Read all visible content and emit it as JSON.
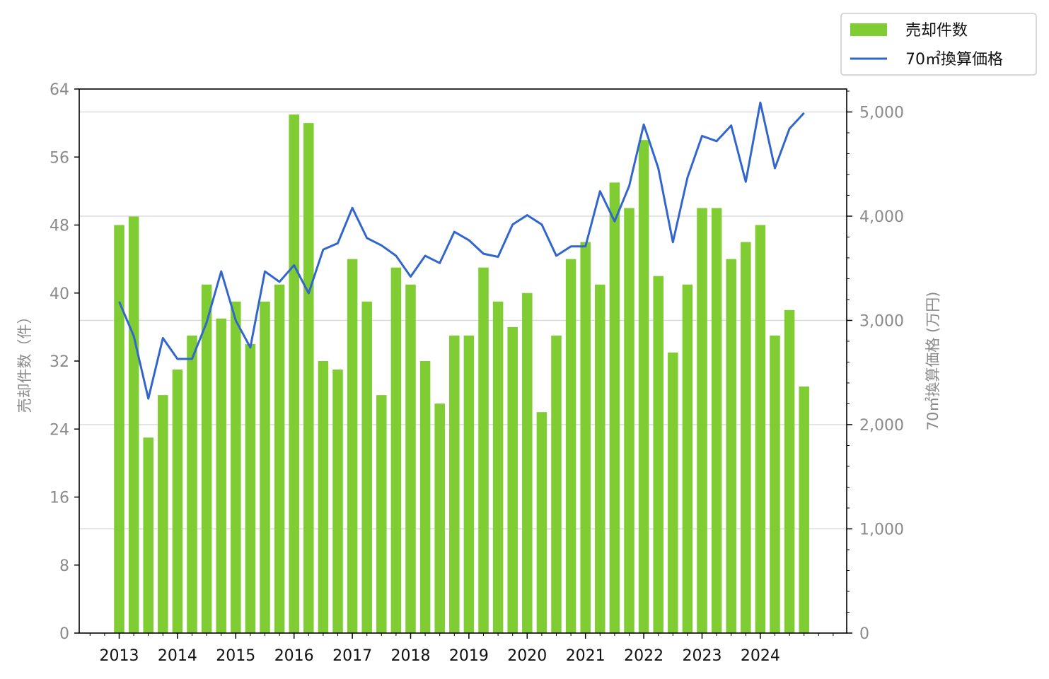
{
  "chart_data": {
    "type": "bar",
    "x_tick_labels": [
      "2013",
      "2014",
      "2015",
      "2016",
      "2017",
      "2018",
      "2019",
      "2020",
      "2021",
      "2022",
      "2023",
      "2024"
    ],
    "x": [
      "2013Q1",
      "2013Q2",
      "2013Q3",
      "2013Q4",
      "2014Q1",
      "2014Q2",
      "2014Q3",
      "2014Q4",
      "2015Q1",
      "2015Q2",
      "2015Q3",
      "2015Q4",
      "2016Q1",
      "2016Q2",
      "2016Q3",
      "2016Q4",
      "2017Q1",
      "2017Q2",
      "2017Q3",
      "2017Q4",
      "2018Q1",
      "2018Q2",
      "2018Q3",
      "2018Q4",
      "2019Q1",
      "2019Q2",
      "2019Q3",
      "2019Q4",
      "2020Q1",
      "2020Q2",
      "2020Q3",
      "2020Q4",
      "2021Q1",
      "2021Q2",
      "2021Q3",
      "2021Q4",
      "2022Q1",
      "2022Q2",
      "2022Q3",
      "2022Q4",
      "2023Q1",
      "2023Q2",
      "2023Q3",
      "2023Q4",
      "2024Q1",
      "2024Q2",
      "2024Q3",
      "2024Q4"
    ],
    "series": [
      {
        "name": "売却件数",
        "type": "bar",
        "axis": "left",
        "color": "#80cc33",
        "values": [
          48,
          49,
          23,
          28,
          31,
          35,
          41,
          37,
          39,
          34,
          39,
          41,
          61,
          60,
          32,
          31,
          44,
          39,
          28,
          43,
          41,
          32,
          27,
          35,
          35,
          43,
          39,
          36,
          40,
          26,
          35,
          44,
          46,
          41,
          53,
          50,
          58,
          42,
          33,
          41,
          50,
          50,
          44,
          46,
          48,
          35,
          38,
          29
        ]
      },
      {
        "name": "70㎡換算価格",
        "type": "line",
        "axis": "right",
        "color": "#3366cc",
        "values": [
          3180,
          2850,
          2250,
          2830,
          2630,
          2630,
          2980,
          3470,
          3000,
          2740,
          3470,
          3370,
          3530,
          3260,
          3680,
          3740,
          4080,
          3790,
          3720,
          3620,
          3420,
          3620,
          3550,
          3850,
          3770,
          3640,
          3610,
          3920,
          4010,
          3920,
          3620,
          3710,
          3710,
          4240,
          3950,
          4290,
          4880,
          4460,
          3750,
          4370,
          4770,
          4720,
          4870,
          4330,
          5090,
          4460,
          4840,
          4990
        ]
      }
    ],
    "y_left": {
      "label": "売却件数（件）",
      "ticks": [
        "0",
        "8",
        "16",
        "24",
        "32",
        "40",
        "48",
        "56",
        "64"
      ],
      "ylim": [
        0,
        64
      ]
    },
    "y_right": {
      "label": "70㎡換算価格 (万円)",
      "ticks": [
        "0",
        "1,000",
        "2,000",
        "3,000",
        "4,000",
        "5,000"
      ],
      "ylim": [
        0,
        5220
      ]
    },
    "grid": "horizontal (right axis)",
    "legend_position": "top-right"
  }
}
